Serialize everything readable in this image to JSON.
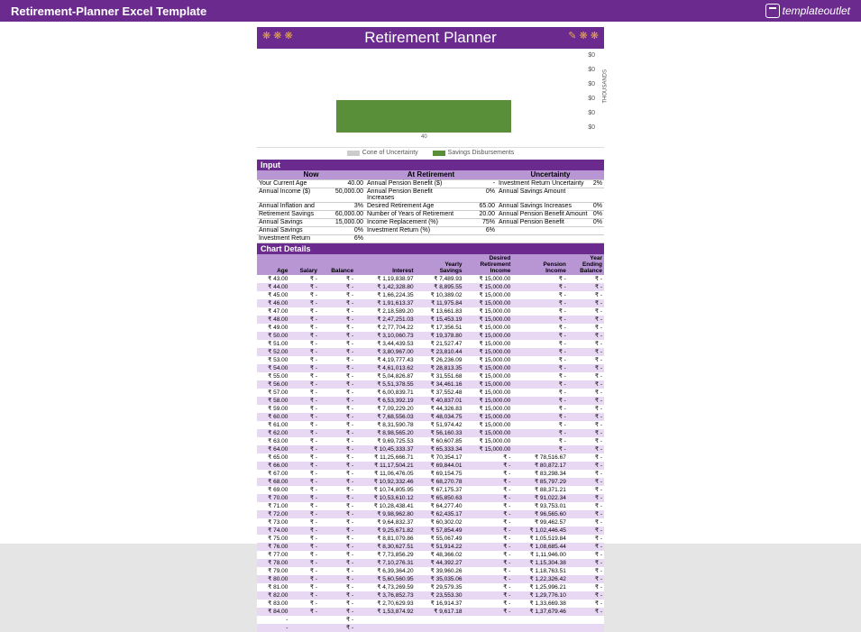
{
  "topbar": {
    "title": "Retirement-Planner Excel Template",
    "logo": "templateoutlet"
  },
  "banner": {
    "title": "Retirement Planner"
  },
  "chart": {
    "y_ticks": [
      "$0",
      "$0",
      "$0",
      "$0",
      "$0",
      "$0"
    ],
    "y_title": "THOUSANDS",
    "x_label": "40",
    "bar_color": "#5a8f3a",
    "legend": [
      {
        "label": "Cone of Uncertainty",
        "color": "#cccccc"
      },
      {
        "label": "Savings Disbursements",
        "color": "#5a8f3a"
      }
    ]
  },
  "input": {
    "header": "Input",
    "col_now": "Now",
    "col_ret": "At Retirement",
    "col_unc": "Uncertainty",
    "rows": [
      {
        "l1": "Your Current Age",
        "v1": "40.00",
        "l2": "Annual Pension Benefit ($)",
        "v2": "-",
        "l3": "Investment Return Uncertainty",
        "v3": "2%"
      },
      {
        "l1": "Annual Income ($)",
        "v1": "50,000.00",
        "l2": "Annual Pension Benefit Increases",
        "v2": "0%",
        "l3": "Annual Savings Amount",
        "v3": ""
      },
      {
        "l1": "Annual Inflation and",
        "v1": "3%",
        "l2": "Desired Retirement Age",
        "v2": "65.00",
        "l3": "Annual Savings Increases",
        "v3": "0%"
      },
      {
        "l1": "Retirement Savings",
        "v1": "60,000.00",
        "l2": "Number of Years of Retirement",
        "v2": "20.00",
        "l3": "Annual Pension Benefit Amount",
        "v3": "0%"
      },
      {
        "l1": "Annual Savings",
        "v1": "15,000.00",
        "l2": "Income Replacement (%)",
        "v2": "75%",
        "l3": "Annual Pension Benefit",
        "v3": "0%"
      },
      {
        "l1": "Annual Savings",
        "v1": "0%",
        "l2": "Investment Return (%)",
        "v2": "6%",
        "l3": "",
        "v3": ""
      },
      {
        "l1": "Investment Return",
        "v1": "6%",
        "l2": "",
        "v2": "",
        "l3": "",
        "v3": ""
      }
    ]
  },
  "details": {
    "header": "Chart Details",
    "cols": [
      "Age",
      "Salary",
      "Balance",
      "Interest",
      "Yearly Savings",
      "Desired Retirement Income",
      "Pension Income",
      "Year Ending Balance"
    ],
    "cur": "₹",
    "rows": [
      {
        "age": "43.00",
        "sal": "-",
        "bal": "-",
        "int": "1,19,838.97",
        "ys": "7,489.93",
        "dri": "15,000.00",
        "pi": "-",
        "yeb": "-"
      },
      {
        "age": "44.00",
        "sal": "-",
        "bal": "-",
        "int": "1,42,328.80",
        "ys": "8,895.55",
        "dri": "15,000.00",
        "pi": "-",
        "yeb": "-"
      },
      {
        "age": "45.00",
        "sal": "-",
        "bal": "-",
        "int": "1,66,224.35",
        "ys": "10,389.02",
        "dri": "15,000.00",
        "pi": "-",
        "yeb": "-"
      },
      {
        "age": "46.00",
        "sal": "-",
        "bal": "-",
        "int": "1,91,613.37",
        "ys": "11,975.84",
        "dri": "15,000.00",
        "pi": "-",
        "yeb": "-"
      },
      {
        "age": "47.00",
        "sal": "-",
        "bal": "-",
        "int": "2,18,589.20",
        "ys": "13,661.83",
        "dri": "15,000.00",
        "pi": "-",
        "yeb": "-"
      },
      {
        "age": "48.00",
        "sal": "-",
        "bal": "-",
        "int": "2,47,251.03",
        "ys": "15,453.19",
        "dri": "15,000.00",
        "pi": "-",
        "yeb": "-"
      },
      {
        "age": "49.00",
        "sal": "-",
        "bal": "-",
        "int": "2,77,704.22",
        "ys": "17,356.51",
        "dri": "15,000.00",
        "pi": "-",
        "yeb": "-"
      },
      {
        "age": "50.00",
        "sal": "-",
        "bal": "-",
        "int": "3,10,060.73",
        "ys": "19,378.80",
        "dri": "15,000.00",
        "pi": "-",
        "yeb": "-"
      },
      {
        "age": "51.00",
        "sal": "-",
        "bal": "-",
        "int": "3,44,439.53",
        "ys": "21,527.47",
        "dri": "15,000.00",
        "pi": "-",
        "yeb": "-"
      },
      {
        "age": "52.00",
        "sal": "-",
        "bal": "-",
        "int": "3,80,967.00",
        "ys": "23,810.44",
        "dri": "15,000.00",
        "pi": "-",
        "yeb": "-"
      },
      {
        "age": "53.00",
        "sal": "-",
        "bal": "-",
        "int": "4,19,777.43",
        "ys": "26,236.09",
        "dri": "15,000.00",
        "pi": "-",
        "yeb": "-"
      },
      {
        "age": "54.00",
        "sal": "-",
        "bal": "-",
        "int": "4,61,013.62",
        "ys": "28,813.35",
        "dri": "15,000.00",
        "pi": "-",
        "yeb": "-"
      },
      {
        "age": "55.00",
        "sal": "-",
        "bal": "-",
        "int": "5,04,826.87",
        "ys": "31,551.68",
        "dri": "15,000.00",
        "pi": "-",
        "yeb": "-"
      },
      {
        "age": "56.00",
        "sal": "-",
        "bal": "-",
        "int": "5,51,378.55",
        "ys": "34,461.16",
        "dri": "15,000.00",
        "pi": "-",
        "yeb": "-"
      },
      {
        "age": "57.00",
        "sal": "-",
        "bal": "-",
        "int": "6,00,839.71",
        "ys": "37,552.48",
        "dri": "15,000.00",
        "pi": "-",
        "yeb": "-"
      },
      {
        "age": "58.00",
        "sal": "-",
        "bal": "-",
        "int": "6,53,392.19",
        "ys": "40,837.01",
        "dri": "15,000.00",
        "pi": "-",
        "yeb": "-"
      },
      {
        "age": "59.00",
        "sal": "-",
        "bal": "-",
        "int": "7,09,229.20",
        "ys": "44,326.83",
        "dri": "15,000.00",
        "pi": "-",
        "yeb": "-"
      },
      {
        "age": "60.00",
        "sal": "-",
        "bal": "-",
        "int": "7,68,556.03",
        "ys": "48,034.75",
        "dri": "15,000.00",
        "pi": "-",
        "yeb": "-"
      },
      {
        "age": "61.00",
        "sal": "-",
        "bal": "-",
        "int": "8,31,590.78",
        "ys": "51,974.42",
        "dri": "15,000.00",
        "pi": "-",
        "yeb": "-"
      },
      {
        "age": "62.00",
        "sal": "-",
        "bal": "-",
        "int": "8,98,565.20",
        "ys": "56,160.33",
        "dri": "15,000.00",
        "pi": "-",
        "yeb": "-"
      },
      {
        "age": "63.00",
        "sal": "-",
        "bal": "-",
        "int": "9,69,725.53",
        "ys": "60,607.85",
        "dri": "15,000.00",
        "pi": "-",
        "yeb": "-"
      },
      {
        "age": "64.00",
        "sal": "-",
        "bal": "-",
        "int": "10,45,333.37",
        "ys": "65,333.34",
        "dri": "15,000.00",
        "pi": "-",
        "yeb": "-"
      },
      {
        "age": "65.00",
        "sal": "-",
        "bal": "-",
        "int": "11,25,666.71",
        "ys": "70,354.17",
        "dri": "-",
        "pi": "78,516.67",
        "yeb": "-"
      },
      {
        "age": "66.00",
        "sal": "-",
        "bal": "-",
        "int": "11,17,504.21",
        "ys": "69,844.01",
        "dri": "-",
        "pi": "80,872.17",
        "yeb": "-"
      },
      {
        "age": "67.00",
        "sal": "-",
        "bal": "-",
        "int": "11,06,476.05",
        "ys": "69,154.75",
        "dri": "-",
        "pi": "83,298.34",
        "yeb": "-"
      },
      {
        "age": "68.00",
        "sal": "-",
        "bal": "-",
        "int": "10,92,332.46",
        "ys": "68,270.78",
        "dri": "-",
        "pi": "85,797.29",
        "yeb": "-"
      },
      {
        "age": "69.00",
        "sal": "-",
        "bal": "-",
        "int": "10,74,805.95",
        "ys": "67,175.37",
        "dri": "-",
        "pi": "88,371.21",
        "yeb": "-"
      },
      {
        "age": "70.00",
        "sal": "-",
        "bal": "-",
        "int": "10,53,610.12",
        "ys": "65,850.63",
        "dri": "-",
        "pi": "91,022.34",
        "yeb": "-"
      },
      {
        "age": "71.00",
        "sal": "-",
        "bal": "-",
        "int": "10,28,438.41",
        "ys": "64,277.40",
        "dri": "-",
        "pi": "93,753.01",
        "yeb": "-"
      },
      {
        "age": "72.00",
        "sal": "-",
        "bal": "-",
        "int": "9,98,962.80",
        "ys": "62,435.17",
        "dri": "-",
        "pi": "96,565.60",
        "yeb": "-"
      },
      {
        "age": "73.00",
        "sal": "-",
        "bal": "-",
        "int": "9,64,832.37",
        "ys": "60,302.02",
        "dri": "-",
        "pi": "99,462.57",
        "yeb": "-"
      },
      {
        "age": "74.00",
        "sal": "-",
        "bal": "-",
        "int": "9,25,671.82",
        "ys": "57,854.49",
        "dri": "-",
        "pi": "1,02,446.45",
        "yeb": "-"
      },
      {
        "age": "75.00",
        "sal": "-",
        "bal": "-",
        "int": "8,81,079.86",
        "ys": "55,067.49",
        "dri": "-",
        "pi": "1,05,519.84",
        "yeb": "-"
      },
      {
        "age": "76.00",
        "sal": "-",
        "bal": "-",
        "int": "8,30,627.51",
        "ys": "51,914.22",
        "dri": "-",
        "pi": "1,08,685.44",
        "yeb": "-"
      },
      {
        "age": "77.00",
        "sal": "-",
        "bal": "-",
        "int": "7,73,856.29",
        "ys": "48,366.02",
        "dri": "-",
        "pi": "1,11,946.00",
        "yeb": "-"
      },
      {
        "age": "78.00",
        "sal": "-",
        "bal": "-",
        "int": "7,10,276.31",
        "ys": "44,392.27",
        "dri": "-",
        "pi": "1,15,304.38",
        "yeb": "-"
      },
      {
        "age": "79.00",
        "sal": "-",
        "bal": "-",
        "int": "6,39,364.20",
        "ys": "39,960.26",
        "dri": "-",
        "pi": "1,18,763.51",
        "yeb": "-"
      },
      {
        "age": "80.00",
        "sal": "-",
        "bal": "-",
        "int": "5,60,560.95",
        "ys": "35,035.06",
        "dri": "-",
        "pi": "1,22,326.42",
        "yeb": "-"
      },
      {
        "age": "81.00",
        "sal": "-",
        "bal": "-",
        "int": "4,73,269.59",
        "ys": "29,579.35",
        "dri": "-",
        "pi": "1,25,996.21",
        "yeb": "-"
      },
      {
        "age": "82.00",
        "sal": "-",
        "bal": "-",
        "int": "3,76,852.73",
        "ys": "23,553.30",
        "dri": "-",
        "pi": "1,29,776.10",
        "yeb": "-"
      },
      {
        "age": "83.00",
        "sal": "-",
        "bal": "-",
        "int": "2,70,629.93",
        "ys": "16,914.37",
        "dri": "-",
        "pi": "1,33,669.38",
        "yeb": "-"
      },
      {
        "age": "84.00",
        "sal": "-",
        "bal": "-",
        "int": "1,53,874.92",
        "ys": "9,617.18",
        "dri": "-",
        "pi": "1,37,679.46",
        "yeb": "-"
      },
      {
        "age": "",
        "sal": "",
        "bal": "-",
        "int": "",
        "ys": "",
        "dri": "",
        "pi": "",
        "yeb": ""
      },
      {
        "age": "",
        "sal": "",
        "bal": "-",
        "int": "",
        "ys": "",
        "dri": "",
        "pi": "",
        "yeb": ""
      }
    ]
  }
}
